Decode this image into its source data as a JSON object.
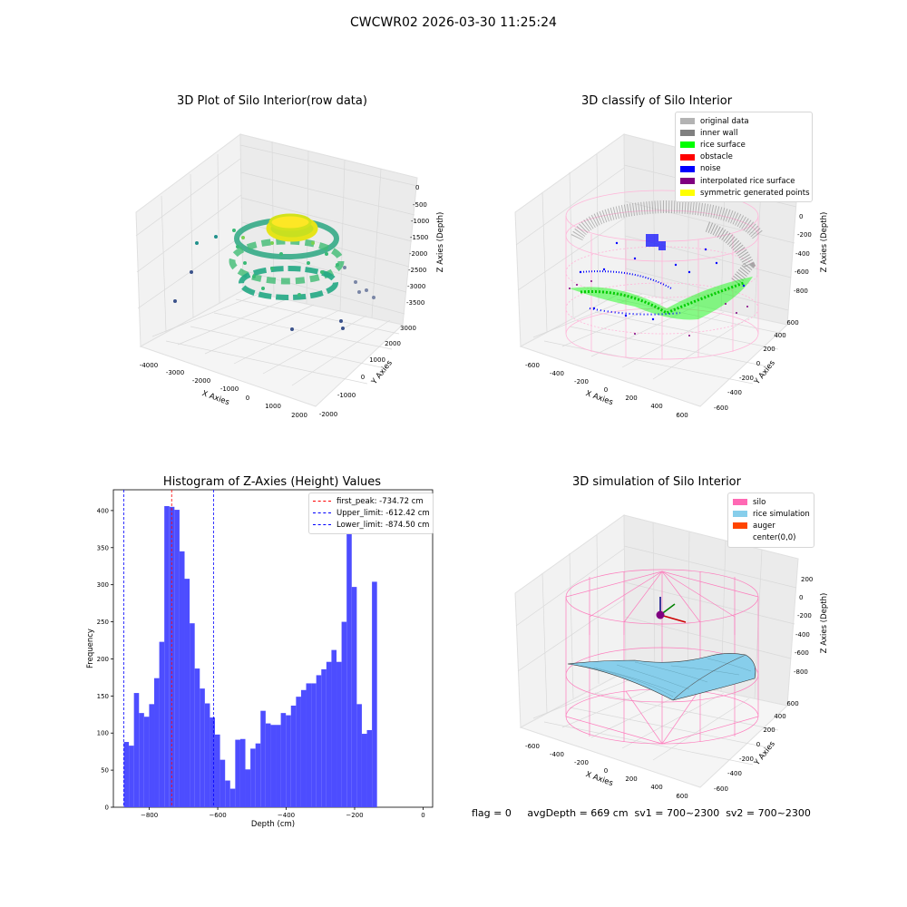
{
  "suptitle": "CWCWR02 2026-03-30 11:25:24",
  "footer": "flag = 0     avgDepth = 669 cm  sv1 = 700~2300  sv2 = 700~2300",
  "panels": {
    "raw": {
      "title": "3D Plot of Silo Interior(row data)",
      "xlabel": "X Axies",
      "ylabel": "Y Axies",
      "zlabel": "Z Axies (Depth)",
      "xticks": [
        "-4000",
        "-3000",
        "-2000",
        "-1000",
        "0",
        "1000",
        "2000"
      ],
      "yticks": [
        "-2000",
        "-1000",
        "0",
        "1000",
        "2000",
        "3000"
      ],
      "zticks": [
        "0",
        "-500",
        "-1000",
        "-1500",
        "-2000",
        "-2500",
        "-3000",
        "-3500"
      ]
    },
    "classify": {
      "title": "3D classify of Silo Interior",
      "xlabel": "X Axies",
      "ylabel": "Y Axies",
      "zlabel": "Z Axies (Depth)",
      "xticks": [
        "-600",
        "-400",
        "-200",
        "0",
        "200",
        "400",
        "600"
      ],
      "yticks": [
        "-600",
        "-400",
        "-200",
        "0",
        "200",
        "400",
        "600"
      ],
      "zticks": [
        "200",
        "0",
        "-200",
        "-400",
        "-600",
        "-800"
      ],
      "legend": [
        {
          "label": "original data",
          "color": "#b3b3b3"
        },
        {
          "label": "inner wall",
          "color": "#808080"
        },
        {
          "label": "rice surface",
          "color": "#00ff00"
        },
        {
          "label": "obstacle",
          "color": "#ff0000"
        },
        {
          "label": "noise",
          "color": "#0000ff"
        },
        {
          "label": "interpolated rice surface",
          "color": "#800080"
        },
        {
          "label": "symmetric generated points",
          "color": "#ffff00"
        }
      ]
    },
    "simulation": {
      "title": "3D simulation of Silo Interior",
      "xlabel": "X Axies",
      "ylabel": "Y Axies",
      "zlabel": "Z Axies (Depth)",
      "xticks": [
        "-600",
        "-400",
        "-200",
        "0",
        "200",
        "400",
        "600"
      ],
      "yticks": [
        "-600",
        "-400",
        "-200",
        "0",
        "200",
        "400",
        "600"
      ],
      "zticks": [
        "200",
        "0",
        "-200",
        "-400",
        "-600",
        "-800"
      ],
      "legend": [
        {
          "label": "silo",
          "color": "#ff69b4"
        },
        {
          "label": "rice simulation",
          "color": "#87ceeb"
        },
        {
          "label": "auger",
          "color": "#ff4500"
        },
        {
          "label": "center(0,0)",
          "color": "#ffffff"
        }
      ]
    }
  },
  "chart_data": {
    "type": "bar",
    "title": "Histogram of Z-Axies (Height) Values",
    "xlabel": "Depth (cm)",
    "ylabel": "Frequency",
    "xlim": [
      -905,
      28
    ],
    "ylim": [
      0,
      428
    ],
    "xticks": [
      -800,
      -600,
      -400,
      -200,
      0
    ],
    "yticks": [
      0,
      50,
      100,
      150,
      200,
      250,
      300,
      350,
      400
    ],
    "bin_start": -874.5,
    "bin_width": 14.8,
    "values": [
      88,
      83,
      154,
      127,
      122,
      139,
      174,
      223,
      406,
      405,
      401,
      345,
      308,
      248,
      187,
      160,
      140,
      121,
      98,
      64,
      36,
      25,
      91,
      92,
      51,
      79,
      86,
      130,
      113,
      111,
      111,
      127,
      124,
      137,
      149,
      158,
      167,
      167,
      178,
      186,
      196,
      212,
      196,
      250,
      375,
      297,
      139,
      99,
      104,
      304
    ],
    "bar_color": "#4d4dff",
    "vlines": [
      {
        "label": "first_peak: -734.72 cm",
        "x": -734.72,
        "color": "#ff0000"
      },
      {
        "label": "Upper_limit: -612.42 cm",
        "x": -612.42,
        "color": "#0000ff"
      },
      {
        "label": "Lower_limit: -874.50 cm",
        "x": -874.5,
        "color": "#0000ff"
      }
    ],
    "legend_position": "top-right"
  }
}
